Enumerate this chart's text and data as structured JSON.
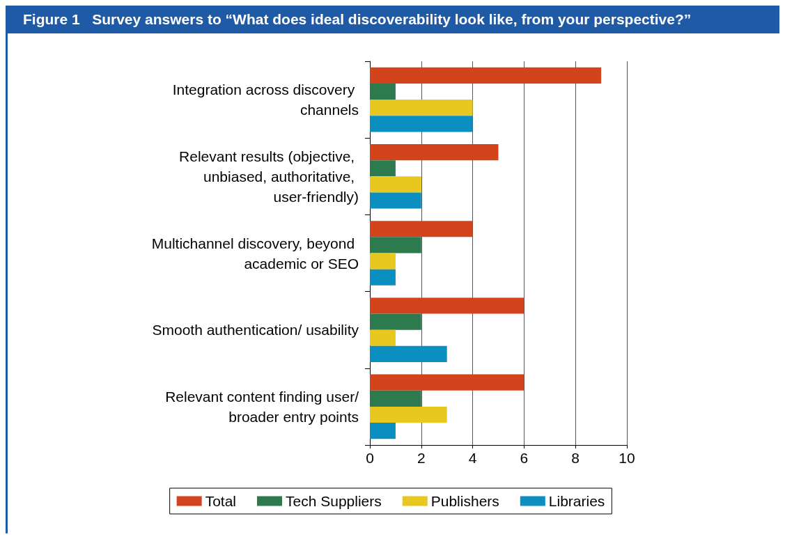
{
  "chart_data": {
    "type": "bar",
    "orientation": "horizontal",
    "title": "Figure 1   Survey answers to “What does ideal discoverability look like, from your perspective?”",
    "categories": [
      "Integration across discovery channels",
      "Relevant results (objective, unbiased, authoritative, user-friendly)",
      "Multichannel discovery, beyond academic or SEO",
      "Smooth authentication/ usability",
      "Relevant content finding user/broader entry points"
    ],
    "series": [
      {
        "name": "Total",
        "color": "#d4441c",
        "values": [
          9,
          5,
          4,
          6,
          6
        ]
      },
      {
        "name": "Tech Suppliers",
        "color": "#2e7a4f",
        "values": [
          1,
          1,
          2,
          2,
          2
        ]
      },
      {
        "name": "Publishers",
        "color": "#e8c81e",
        "values": [
          4,
          2,
          1,
          1,
          3
        ]
      },
      {
        "name": "Libraries",
        "color": "#0a8fc0",
        "values": [
          4,
          2,
          1,
          3,
          1
        ]
      }
    ],
    "xlim": [
      0,
      10
    ],
    "xticks": [
      0,
      2,
      4,
      6,
      8,
      10
    ],
    "grid": "x",
    "legend": "bottom"
  }
}
